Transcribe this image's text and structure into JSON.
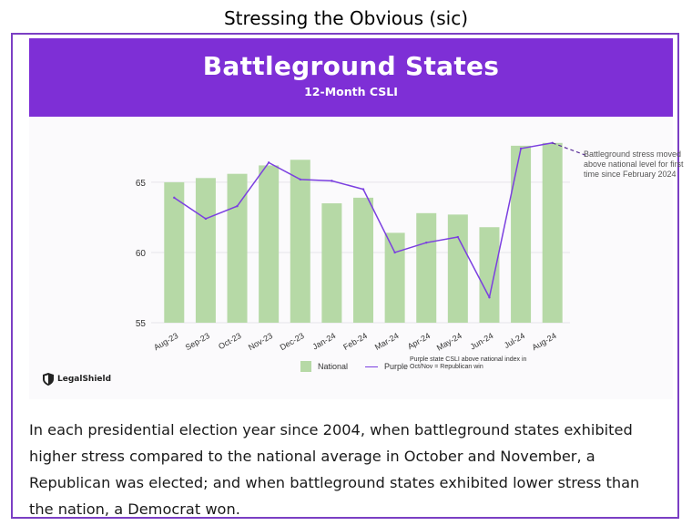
{
  "page_title": "Stressing the Obvious (sic)",
  "banner": {
    "title": "Battleground States",
    "subtitle": "12-Month CSLI"
  },
  "annotation": "Battleground stress moved above national level for first time since February 2024",
  "legend": {
    "national": "National",
    "purple": "Purple",
    "note": "Purple state CSLI above national index in Oct/Nov = Republican win"
  },
  "logo": {
    "text": "LegalShield",
    "icon": "shield-icon"
  },
  "body_text": "In each presidential election year since 2004, when battleground states exhibited higher stress compared to the national average in October and November, a Republican was elected; and when battleground states exhibited lower stress than the nation, a Democrat won.",
  "colors": {
    "banner": "#7e2fd6",
    "frame": "#7b3fc4",
    "bar": "#b6d9a6",
    "line": "#7b3fe0"
  },
  "chart_data": {
    "type": "bar",
    "categories": [
      "Aug-23",
      "Sep-23",
      "Oct-23",
      "Nov-23",
      "Dec-23",
      "Jan-24",
      "Feb-24",
      "Mar-24",
      "Apr-24",
      "May-24",
      "Jun-24",
      "Jul-24",
      "Aug-24"
    ],
    "series": [
      {
        "name": "National",
        "type": "bar",
        "values": [
          65.0,
          65.3,
          65.6,
          66.2,
          66.6,
          63.5,
          63.9,
          61.4,
          62.8,
          62.7,
          61.8,
          67.6,
          67.8
        ]
      },
      {
        "name": "Purple",
        "type": "line",
        "values": [
          63.9,
          62.4,
          63.3,
          66.4,
          65.2,
          65.1,
          64.5,
          60.0,
          60.7,
          61.1,
          56.8,
          67.4,
          67.8
        ]
      }
    ],
    "yticks": [
      55,
      60,
      65
    ],
    "ylim": [
      55,
      68.5
    ],
    "grid": true,
    "legend_position": "bottom"
  }
}
